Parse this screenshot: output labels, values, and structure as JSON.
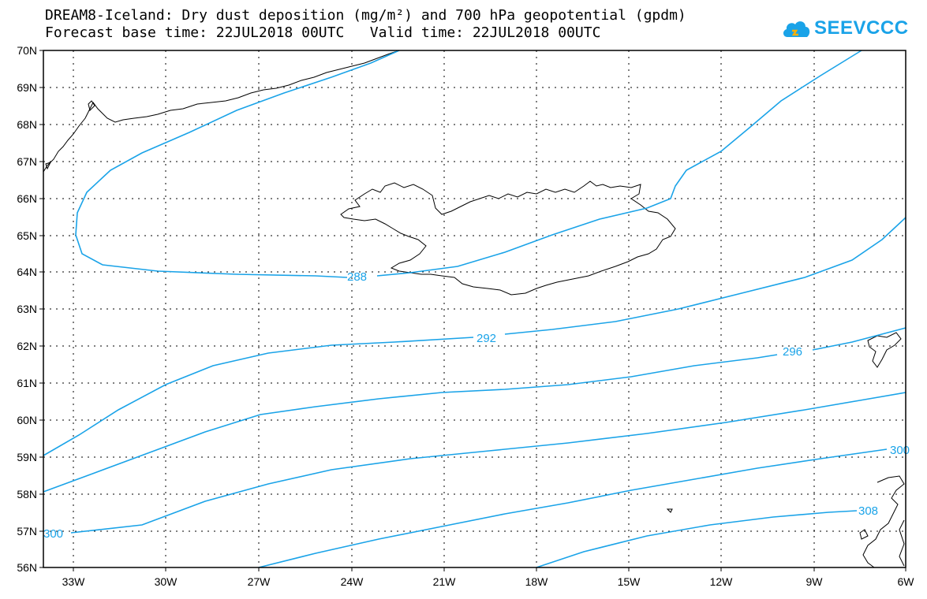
{
  "header": {
    "line1": "DREAM8-Iceland: Dry dust deposition (mg/m²) and 700 hPa geopotential (gpdm)",
    "line2": "Forecast base time: 22JUL2018 00UTC   Valid time: 22JUL2018 00UTC"
  },
  "logo": {
    "text": "SEEVCCC",
    "icon": "cloud-icon"
  },
  "map": {
    "lat_labels": [
      "70N",
      "69N",
      "68N",
      "67N",
      "66N",
      "65N",
      "64N",
      "63N",
      "62N",
      "61N",
      "60N",
      "59N",
      "58N",
      "57N",
      "56N"
    ],
    "lon_labels": [
      "33W",
      "30W",
      "27W",
      "24W",
      "21W",
      "18W",
      "15W",
      "12W",
      "9W",
      "6W"
    ],
    "contour_labels": [
      "288",
      "292",
      "296",
      "300",
      "300",
      "308"
    ],
    "contour_color": "#1aa3e8"
  }
}
